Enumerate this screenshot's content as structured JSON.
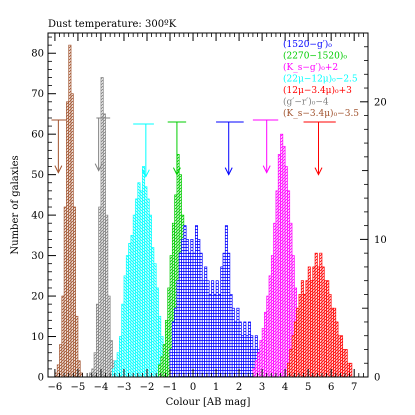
{
  "chart_data": {
    "type": "histogram",
    "title": "Dust temperature: 300ºK",
    "xlabel": "Colour [AB mag]",
    "ylabel": "Number of galaxies",
    "xlim": [
      -6.3,
      7.6
    ],
    "ylim": [
      0,
      85
    ],
    "y2lim": [
      0,
      25
    ],
    "xticks": [
      -6,
      -5,
      -4,
      -3,
      -2,
      -1,
      0,
      1,
      2,
      3,
      4,
      5,
      6,
      7
    ],
    "yticks": [
      0,
      10,
      20,
      30,
      40,
      50,
      60,
      70,
      80
    ],
    "y2ticks": [
      0,
      10,
      20
    ],
    "series": [
      {
        "name": "(K_s−3.4μ)₀−3.5",
        "color": "#a0522d",
        "hatch": "ne",
        "axis": "left",
        "ref_line": {
          "x": [
            -6.15,
            -5.5
          ],
          "y": 63.5
        },
        "arrow_x": -5.85,
        "bins": [
          [
            -5.95,
            1
          ],
          [
            -5.85,
            3
          ],
          [
            -5.75,
            8
          ],
          [
            -5.65,
            20
          ],
          [
            -5.55,
            42
          ],
          [
            -5.45,
            68
          ],
          [
            -5.35,
            82
          ],
          [
            -5.25,
            70
          ],
          [
            -5.15,
            42
          ],
          [
            -5.05,
            15
          ],
          [
            -4.95,
            4
          ],
          [
            -4.85,
            1
          ]
        ]
      },
      {
        "name": "(g′−r′)₀−4",
        "color": "#808080",
        "hatch": "ne",
        "axis": "left",
        "ref_line": {
          "x": [
            -4.2,
            -3.6
          ],
          "y": 64
        },
        "arrow_x": -4.1,
        "bins": [
          [
            -4.45,
            1
          ],
          [
            -4.35,
            2
          ],
          [
            -4.25,
            6
          ],
          [
            -4.15,
            18
          ],
          [
            -4.05,
            42
          ],
          [
            -3.95,
            74
          ],
          [
            -3.85,
            65
          ],
          [
            -3.75,
            40
          ],
          [
            -3.65,
            20
          ],
          [
            -3.55,
            9
          ],
          [
            -3.45,
            4
          ],
          [
            -3.35,
            2
          ],
          [
            -3.25,
            1
          ]
        ]
      },
      {
        "name": "(22μ−12μ)₀−2.5",
        "color": "#00ffff",
        "hatch": "nw",
        "axis": "left",
        "ref_line": {
          "x": [
            -2.6,
            -1.7
          ],
          "y": 62.5
        },
        "arrow_x": -2.05,
        "bins": [
          [
            -3.45,
            2
          ],
          [
            -3.35,
            4
          ],
          [
            -3.25,
            6
          ],
          [
            -3.15,
            10
          ],
          [
            -3.05,
            18
          ],
          [
            -2.95,
            25
          ],
          [
            -2.85,
            30
          ],
          [
            -2.75,
            33
          ],
          [
            -2.65,
            35
          ],
          [
            -2.55,
            40
          ],
          [
            -2.45,
            44
          ],
          [
            -2.35,
            48
          ],
          [
            -2.25,
            46
          ],
          [
            -2.15,
            52
          ],
          [
            -2.05,
            47
          ],
          [
            -1.95,
            44
          ],
          [
            -1.85,
            40
          ],
          [
            -1.75,
            32
          ],
          [
            -1.65,
            28
          ],
          [
            -1.55,
            22
          ],
          [
            -1.45,
            15
          ],
          [
            -1.35,
            10
          ],
          [
            -1.25,
            6
          ],
          [
            -1.15,
            3
          ],
          [
            -1.05,
            2
          ]
        ]
      },
      {
        "name": "(2270−1520)₀",
        "color": "#00cc00",
        "hatch": "ne",
        "axis": "left",
        "ref_line": {
          "x": [
            -1.1,
            -0.3
          ],
          "y": 63
        },
        "arrow_x": -0.7,
        "bins": [
          [
            -1.45,
            3
          ],
          [
            -1.35,
            5
          ],
          [
            -1.25,
            8
          ],
          [
            -1.15,
            14
          ],
          [
            -1.05,
            22
          ],
          [
            -0.95,
            30
          ],
          [
            -0.85,
            38
          ],
          [
            -0.75,
            45
          ],
          [
            -0.65,
            55
          ],
          [
            -0.55,
            50
          ],
          [
            -0.45,
            40
          ],
          [
            -0.35,
            30
          ],
          [
            -0.25,
            22
          ],
          [
            -0.15,
            16
          ],
          [
            -0.05,
            10
          ],
          [
            0.05,
            6
          ],
          [
            0.15,
            4
          ],
          [
            0.25,
            2
          ]
        ]
      },
      {
        "name": "(1520−g′)₀",
        "color": "#0000ff",
        "hatch": "grid",
        "axis": "right",
        "ref_line": {
          "x": [
            1.0,
            2.2
          ],
          "y": 63
        },
        "arrow_x": 1.55,
        "bins": [
          [
            -0.95,
            2
          ],
          [
            -0.85,
            4
          ],
          [
            -0.75,
            5
          ],
          [
            -0.65,
            7
          ],
          [
            -0.55,
            9
          ],
          [
            -0.45,
            10
          ],
          [
            -0.35,
            11
          ],
          [
            -0.25,
            10
          ],
          [
            -0.15,
            9
          ],
          [
            -0.05,
            10
          ],
          [
            0.05,
            9
          ],
          [
            0.15,
            11
          ],
          [
            0.25,
            10
          ],
          [
            0.35,
            9
          ],
          [
            0.45,
            7
          ],
          [
            0.55,
            8
          ],
          [
            0.65,
            7
          ],
          [
            0.75,
            6
          ],
          [
            0.85,
            7
          ],
          [
            0.95,
            6
          ],
          [
            1.05,
            7
          ],
          [
            1.15,
            6
          ],
          [
            1.25,
            8
          ],
          [
            1.35,
            9
          ],
          [
            1.45,
            11
          ],
          [
            1.55,
            9
          ],
          [
            1.65,
            6
          ],
          [
            1.75,
            5
          ],
          [
            1.85,
            4
          ],
          [
            1.95,
            5
          ],
          [
            2.05,
            4
          ],
          [
            2.15,
            3
          ],
          [
            2.25,
            4
          ],
          [
            2.35,
            3
          ],
          [
            2.45,
            4
          ],
          [
            2.55,
            3
          ],
          [
            2.65,
            2
          ],
          [
            2.75,
            3
          ],
          [
            2.85,
            2
          ],
          [
            2.95,
            2
          ],
          [
            3.05,
            1
          ],
          [
            3.15,
            2
          ],
          [
            3.25,
            1
          ]
        ]
      },
      {
        "name": "(K_s−g′)₀+2",
        "color": "#ff00ff",
        "hatch": "ne",
        "axis": "left",
        "ref_line": {
          "x": [
            2.6,
            3.7
          ],
          "y": 63.5
        },
        "arrow_x": 3.2,
        "bins": [
          [
            2.65,
            2
          ],
          [
            2.75,
            4
          ],
          [
            2.85,
            6
          ],
          [
            2.95,
            9
          ],
          [
            3.05,
            12
          ],
          [
            3.15,
            16
          ],
          [
            3.25,
            20
          ],
          [
            3.35,
            25
          ],
          [
            3.45,
            30
          ],
          [
            3.55,
            38
          ],
          [
            3.65,
            46
          ],
          [
            3.75,
            55
          ],
          [
            3.85,
            60
          ],
          [
            3.95,
            57
          ],
          [
            4.05,
            52
          ],
          [
            4.15,
            46
          ],
          [
            4.25,
            38
          ],
          [
            4.35,
            30
          ],
          [
            4.45,
            22
          ],
          [
            4.55,
            15
          ],
          [
            4.65,
            10
          ],
          [
            4.75,
            6
          ],
          [
            4.85,
            3
          ],
          [
            4.95,
            2
          ]
        ]
      },
      {
        "name": "(12μ−3.4μ)₀+3",
        "color": "#ff0000",
        "hatch": "ne",
        "axis": "right",
        "ref_line": {
          "x": [
            4.8,
            6.2
          ],
          "y": 63
        },
        "arrow_x": 5.45,
        "bins": [
          [
            4.15,
            1
          ],
          [
            4.25,
            2
          ],
          [
            4.35,
            3
          ],
          [
            4.45,
            4
          ],
          [
            4.55,
            5
          ],
          [
            4.65,
            6
          ],
          [
            4.75,
            7
          ],
          [
            4.85,
            6
          ],
          [
            4.95,
            7
          ],
          [
            5.05,
            8
          ],
          [
            5.15,
            7
          ],
          [
            5.25,
            8
          ],
          [
            5.35,
            9
          ],
          [
            5.45,
            8
          ],
          [
            5.55,
            9
          ],
          [
            5.65,
            8
          ],
          [
            5.75,
            7
          ],
          [
            5.85,
            7
          ],
          [
            5.95,
            6
          ],
          [
            6.05,
            5
          ],
          [
            6.15,
            5
          ],
          [
            6.25,
            4
          ],
          [
            6.35,
            3
          ],
          [
            6.45,
            3
          ],
          [
            6.55,
            2
          ],
          [
            6.65,
            2
          ],
          [
            6.75,
            1
          ],
          [
            6.85,
            1
          ]
        ]
      }
    ]
  }
}
